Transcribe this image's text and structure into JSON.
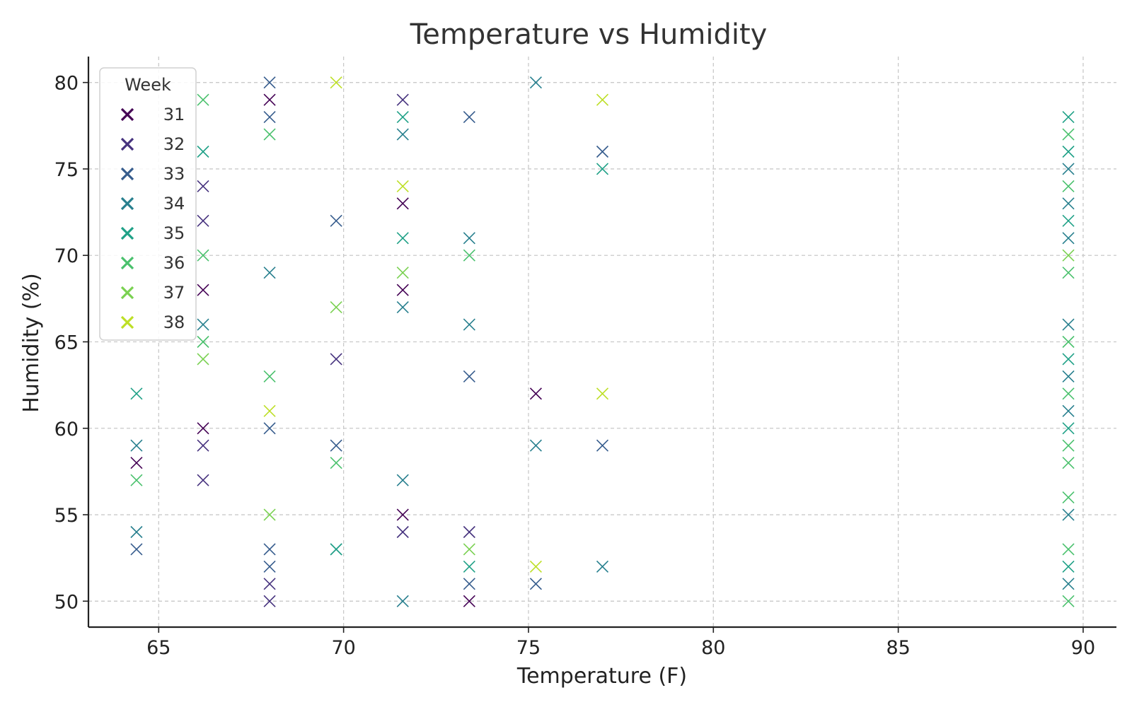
{
  "chart_data": {
    "type": "scatter",
    "title": "Temperature vs Humidity",
    "xlabel": "Temperature (F)",
    "ylabel": "Humidity (%)",
    "xlim": [
      63.1,
      90.9
    ],
    "ylim": [
      48.5,
      81.5
    ],
    "xticks": [
      65,
      70,
      75,
      80,
      85,
      90
    ],
    "yticks": [
      50,
      55,
      60,
      65,
      70,
      75,
      80
    ],
    "grid": true,
    "marker": "x",
    "legend": {
      "title": "Week",
      "placement": "top-left"
    },
    "series": [
      {
        "name": "31",
        "color": "#440154",
        "points": [
          [
            64.4,
            58
          ],
          [
            66.2,
            68
          ],
          [
            66.2,
            60
          ],
          [
            68,
            79
          ],
          [
            71.6,
            68
          ],
          [
            71.6,
            73
          ],
          [
            71.6,
            55
          ],
          [
            73.4,
            50
          ],
          [
            75.2,
            62
          ]
        ]
      },
      {
        "name": "32",
        "color": "#46327e",
        "points": [
          [
            66.2,
            74
          ],
          [
            66.2,
            72
          ],
          [
            66.2,
            59
          ],
          [
            66.2,
            57
          ],
          [
            68,
            51
          ],
          [
            68,
            50
          ],
          [
            69.8,
            64
          ],
          [
            71.6,
            79
          ],
          [
            71.6,
            54
          ],
          [
            73.4,
            54
          ]
        ]
      },
      {
        "name": "33",
        "color": "#365c8d",
        "points": [
          [
            64.4,
            53
          ],
          [
            68,
            80
          ],
          [
            68,
            78
          ],
          [
            68,
            60
          ],
          [
            68,
            53
          ],
          [
            68,
            52
          ],
          [
            69.8,
            72
          ],
          [
            69.8,
            59
          ],
          [
            73.4,
            78
          ],
          [
            73.4,
            63
          ],
          [
            73.4,
            51
          ],
          [
            75.2,
            51
          ],
          [
            77,
            76
          ],
          [
            77,
            59
          ]
        ]
      },
      {
        "name": "34",
        "color": "#277f8e",
        "points": [
          [
            64.4,
            54
          ],
          [
            64.4,
            59
          ],
          [
            66.2,
            66
          ],
          [
            68,
            69
          ],
          [
            69.8,
            53
          ],
          [
            71.6,
            77
          ],
          [
            71.6,
            67
          ],
          [
            71.6,
            57
          ],
          [
            71.6,
            50
          ],
          [
            73.4,
            71
          ],
          [
            73.4,
            66
          ],
          [
            75.2,
            80
          ],
          [
            75.2,
            59
          ],
          [
            77,
            52
          ],
          [
            89.6,
            75
          ],
          [
            89.6,
            73
          ],
          [
            89.6,
            71
          ],
          [
            89.6,
            66
          ],
          [
            89.6,
            63
          ],
          [
            89.6,
            61
          ],
          [
            89.6,
            55
          ],
          [
            89.6,
            51
          ]
        ]
      },
      {
        "name": "35",
        "color": "#1fa187",
        "points": [
          [
            64.4,
            62
          ],
          [
            66.2,
            76
          ],
          [
            69.8,
            53
          ],
          [
            71.6,
            78
          ],
          [
            71.6,
            71
          ],
          [
            73.4,
            52
          ],
          [
            77,
            75
          ],
          [
            89.6,
            78
          ],
          [
            89.6,
            76
          ],
          [
            89.6,
            72
          ],
          [
            89.6,
            64
          ],
          [
            89.6,
            60
          ],
          [
            89.6,
            52
          ]
        ]
      },
      {
        "name": "36",
        "color": "#4ac16d",
        "points": [
          [
            64.4,
            57
          ],
          [
            66.2,
            79
          ],
          [
            66.2,
            70
          ],
          [
            66.2,
            65
          ],
          [
            68,
            77
          ],
          [
            68,
            63
          ],
          [
            69.8,
            58
          ],
          [
            73.4,
            70
          ],
          [
            89.6,
            77
          ],
          [
            89.6,
            74
          ],
          [
            89.6,
            69
          ],
          [
            89.6,
            65
          ],
          [
            89.6,
            62
          ],
          [
            89.6,
            59
          ],
          [
            89.6,
            58
          ],
          [
            89.6,
            56
          ],
          [
            89.6,
            53
          ],
          [
            89.6,
            50
          ]
        ]
      },
      {
        "name": "37",
        "color": "#7ad151",
        "points": [
          [
            66.2,
            64
          ],
          [
            68,
            55
          ],
          [
            69.8,
            67
          ],
          [
            71.6,
            69
          ],
          [
            73.4,
            53
          ],
          [
            89.6,
            70
          ]
        ]
      },
      {
        "name": "38",
        "color": "#bddf26",
        "points": [
          [
            68,
            61
          ],
          [
            69.8,
            80
          ],
          [
            71.6,
            74
          ],
          [
            75.2,
            52
          ],
          [
            77,
            79
          ],
          [
            77,
            62
          ]
        ]
      }
    ]
  }
}
